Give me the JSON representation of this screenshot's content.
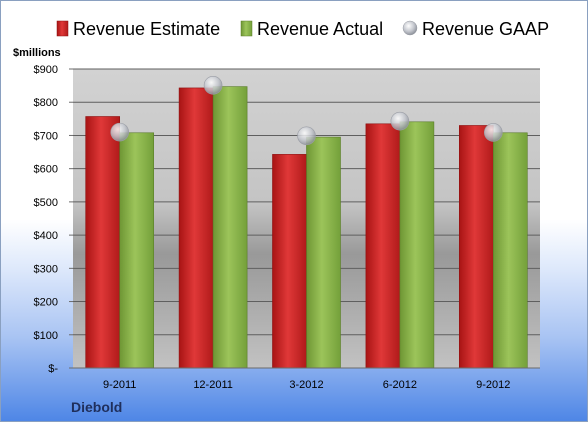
{
  "chart_data": {
    "type": "bar",
    "company": "Diebold",
    "ylabel": "$millions",
    "categories": [
      "9-2011",
      "12-2011",
      "3-2012",
      "6-2012",
      "9-2012"
    ],
    "ylim": [
      0,
      900
    ],
    "yticks": [
      0,
      100,
      200,
      300,
      400,
      500,
      600,
      700,
      800,
      900
    ],
    "ytick_labels": [
      "$-",
      "$100",
      "$200",
      "$300",
      "$400",
      "$500",
      "$600",
      "$700",
      "$800",
      "$900"
    ],
    "series": [
      {
        "name": "Revenue Estimate",
        "kind": "bar",
        "color": "#d42a2a",
        "values": [
          757,
          843,
          643,
          735,
          730
        ]
      },
      {
        "name": "Revenue Actual",
        "kind": "bar",
        "color": "#8ab54a",
        "values": [
          708,
          847,
          695,
          741,
          708
        ]
      },
      {
        "name": "Revenue GAAP",
        "kind": "marker",
        "color": "#b8bcc4",
        "values": [
          710,
          851,
          699,
          743,
          709
        ]
      }
    ],
    "grid": true,
    "legend_position": "top"
  }
}
